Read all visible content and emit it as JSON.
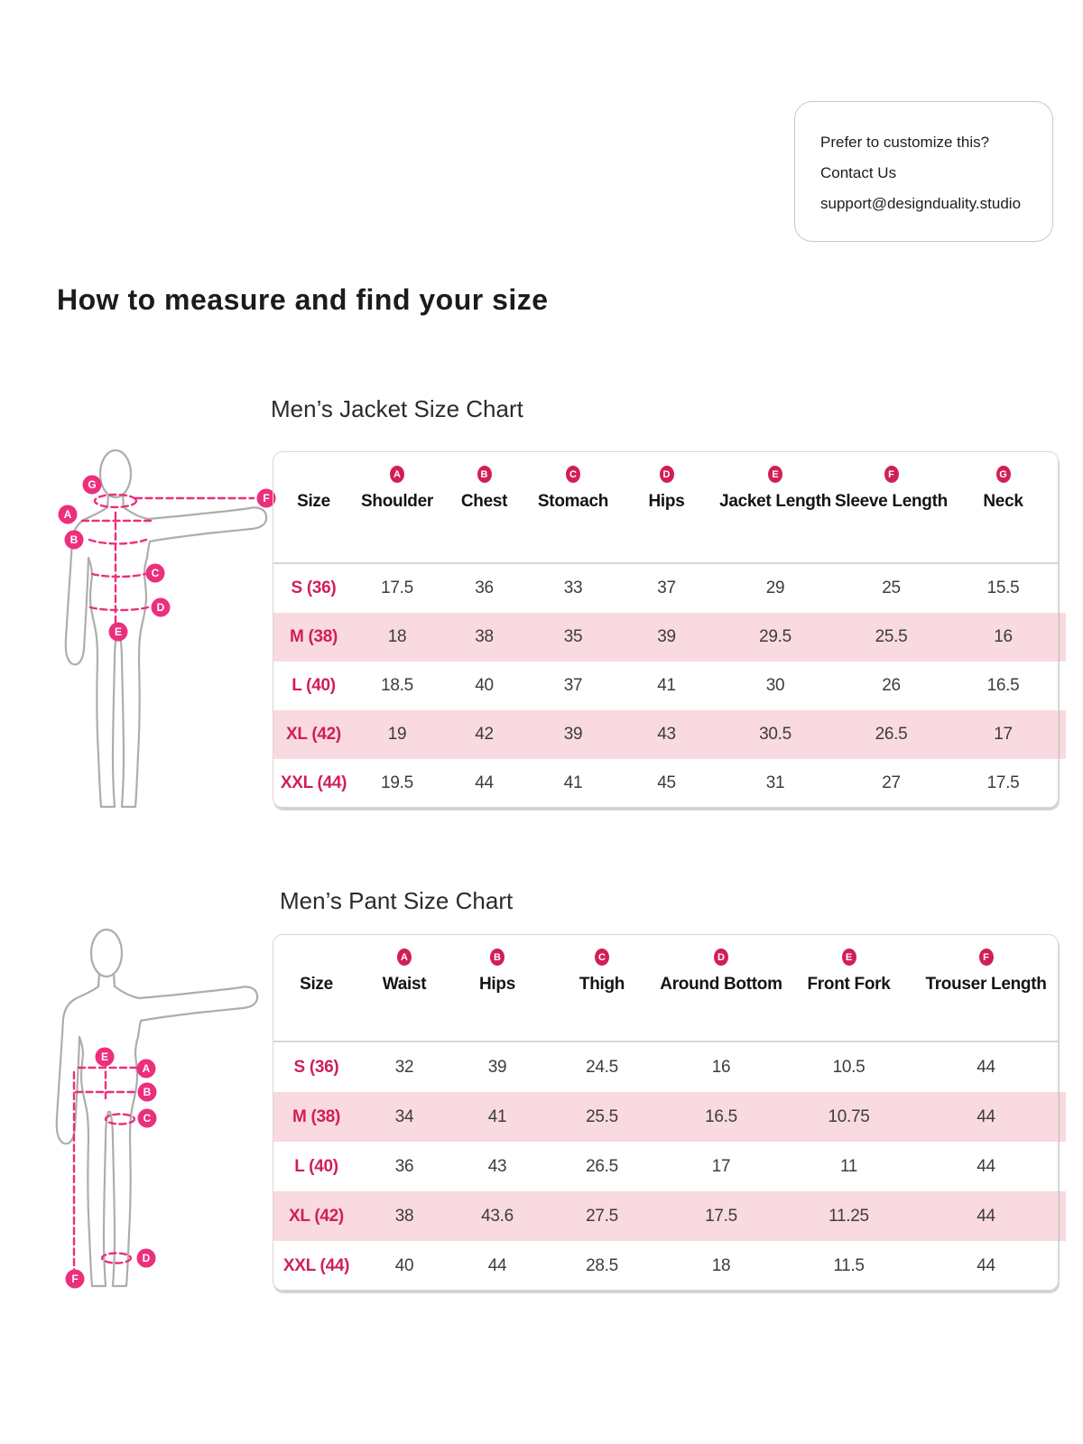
{
  "contact": {
    "line1": "Prefer to customize this?",
    "line2": "Contact Us",
    "line3": "support@designduality.studio"
  },
  "page_title": "How to measure and find your size",
  "jacket_chart": {
    "title": "Men’s Jacket Size Chart",
    "columns": [
      {
        "label": "Size",
        "badge": ""
      },
      {
        "label": "Shoulder",
        "badge": "A"
      },
      {
        "label": "Chest",
        "badge": "B"
      },
      {
        "label": "Stomach",
        "badge": "C"
      },
      {
        "label": "Hips",
        "badge": "D"
      },
      {
        "label": "Jacket Length",
        "badge": "E"
      },
      {
        "label": "Sleeve Length",
        "badge": "F"
      },
      {
        "label": "Neck",
        "badge": "G"
      }
    ],
    "rows": [
      {
        "size": "S (36)",
        "values": [
          "17.5",
          "36",
          "33",
          "37",
          "29",
          "25",
          "15.5"
        ]
      },
      {
        "size": "M (38)",
        "values": [
          "18",
          "38",
          "35",
          "39",
          "29.5",
          "25.5",
          "16"
        ]
      },
      {
        "size": "L (40)",
        "values": [
          "18.5",
          "40",
          "37",
          "41",
          "30",
          "26",
          "16.5"
        ]
      },
      {
        "size": "XL (42)",
        "values": [
          "19",
          "42",
          "39",
          "43",
          "30.5",
          "26.5",
          "17"
        ]
      },
      {
        "size": "XXL (44)",
        "values": [
          "19.5",
          "44",
          "41",
          "45",
          "31",
          "27",
          "17.5"
        ]
      }
    ]
  },
  "pant_chart": {
    "title": "Men’s Pant Size Chart",
    "columns": [
      {
        "label": "Size",
        "badge": ""
      },
      {
        "label": "Waist",
        "badge": "A"
      },
      {
        "label": "Hips",
        "badge": "B"
      },
      {
        "label": "Thigh",
        "badge": "C"
      },
      {
        "label": "Around Bottom",
        "badge": "D"
      },
      {
        "label": "Front Fork",
        "badge": "E"
      },
      {
        "label": "Trouser Length",
        "badge": "F"
      }
    ],
    "rows": [
      {
        "size": "S (36)",
        "values": [
          "32",
          "39",
          "24.5",
          "16",
          "10.5",
          "44"
        ]
      },
      {
        "size": "M (38)",
        "values": [
          "34",
          "41",
          "25.5",
          "16.5",
          "10.75",
          "44"
        ]
      },
      {
        "size": "L (40)",
        "values": [
          "36",
          "43",
          "26.5",
          "17",
          "11",
          "44"
        ]
      },
      {
        "size": "XL (42)",
        "values": [
          "38",
          "43.6",
          "27.5",
          "17.5",
          "11.25",
          "44"
        ]
      },
      {
        "size": "XXL (44)",
        "values": [
          "40",
          "44",
          "28.5",
          "18",
          "11.5",
          "44"
        ]
      }
    ]
  },
  "figure_letters": {
    "jacket": {
      "a": "A",
      "b": "B",
      "c": "C",
      "d": "D",
      "e": "E",
      "f": "F",
      "g": "G"
    },
    "pant": {
      "a": "A",
      "b": "B",
      "c": "C",
      "d": "D",
      "e": "E",
      "f": "F"
    }
  },
  "colors": {
    "figure_pink": "#EC2F7D",
    "crimson": "#D11F56",
    "row_pink": "#F9DAE1",
    "border_gray": "#D8D7CF"
  }
}
